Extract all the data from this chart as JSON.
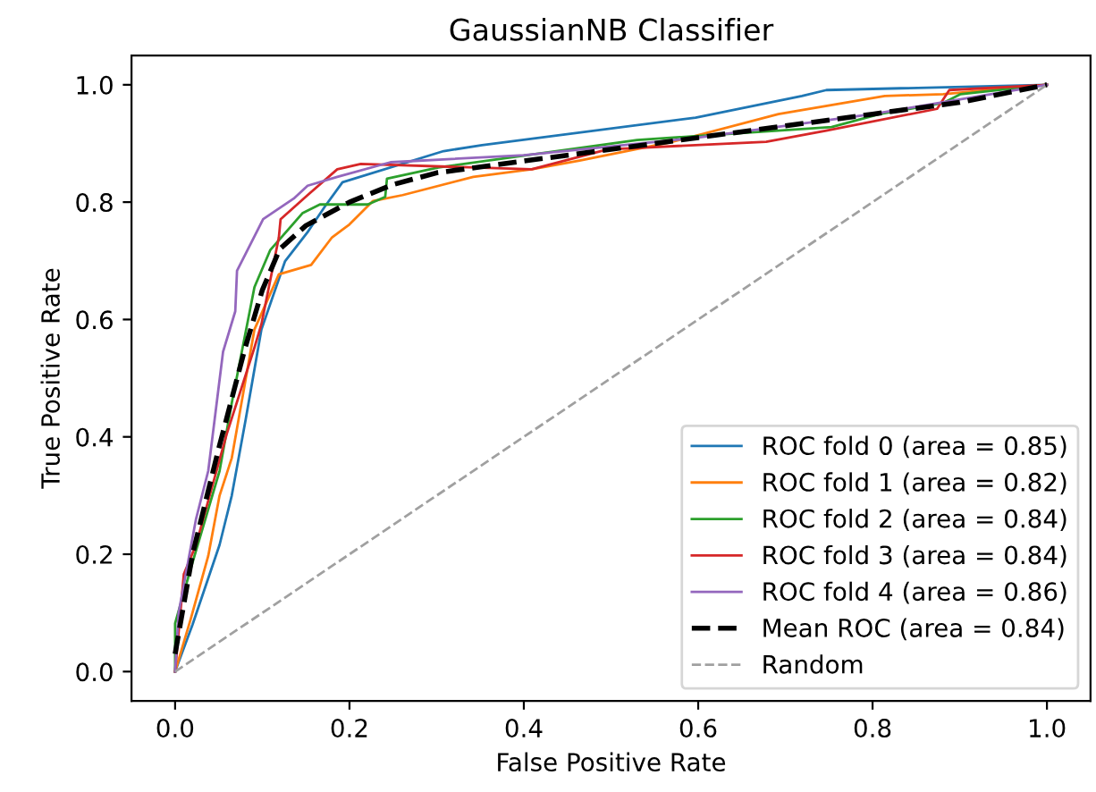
{
  "chart_data": {
    "type": "line",
    "title": "GaussianNB Classifier",
    "xlabel": "False Positive Rate",
    "ylabel": "True Positive Rate",
    "xlim": [
      -0.05,
      1.05
    ],
    "ylim": [
      -0.05,
      1.05
    ],
    "xticks": [
      {
        "value": 0,
        "label": "0.0"
      },
      {
        "value": 0.2,
        "label": "0.2"
      },
      {
        "value": 0.4,
        "label": "0.4"
      },
      {
        "value": 0.6,
        "label": "0.6"
      },
      {
        "value": 0.8,
        "label": "0.8"
      },
      {
        "value": 1,
        "label": "1.0"
      }
    ],
    "yticks": [
      {
        "value": 0,
        "label": "0.0"
      },
      {
        "value": 0.2,
        "label": "0.2"
      },
      {
        "value": 0.4,
        "label": "0.4"
      },
      {
        "value": 0.6,
        "label": "0.6"
      },
      {
        "value": 0.8,
        "label": "0.8"
      },
      {
        "value": 1,
        "label": "1.0"
      }
    ],
    "grid": false,
    "legend": "bottom right",
    "marker": "none",
    "series": [
      {
        "name": "ROC fold 0 (area = 0.85)",
        "color": "#1f77b4",
        "line_style": "solid",
        "x": [
          0,
          0.02,
          0.051,
          0.065,
          0.081,
          0.099,
          0.126,
          0.152,
          0.172,
          0.192,
          0.308,
          0.352,
          0.597,
          0.719,
          0.747,
          1
        ],
        "values": [
          0,
          0.08,
          0.216,
          0.3,
          0.43,
          0.583,
          0.699,
          0.749,
          0.793,
          0.834,
          0.887,
          0.897,
          0.944,
          0.981,
          0.991,
          1
        ]
      },
      {
        "name": "ROC fold 1 (area = 0.82)",
        "color": "#ff7f0e",
        "line_style": "solid",
        "x": [
          0,
          0.018,
          0.038,
          0.051,
          0.065,
          0.091,
          0.119,
          0.156,
          0.18,
          0.2,
          0.227,
          0.261,
          0.342,
          0.409,
          0.464,
          0.571,
          0.692,
          0.814,
          0.881,
          1
        ],
        "values": [
          0,
          0.09,
          0.197,
          0.3,
          0.364,
          0.583,
          0.677,
          0.693,
          0.74,
          0.762,
          0.802,
          0.812,
          0.843,
          0.856,
          0.871,
          0.903,
          0.95,
          0.981,
          0.984,
          1
        ]
      },
      {
        "name": "ROC fold 2 (area = 0.84)",
        "color": "#2ca02c",
        "line_style": "solid",
        "x": [
          0,
          0,
          0.018,
          0.051,
          0.065,
          0.091,
          0.109,
          0.146,
          0.166,
          0.221,
          0.241,
          0.243,
          0.302,
          0.53,
          0.753,
          0.808,
          0.881,
          0.901,
          1
        ],
        "values": [
          0,
          0.082,
          0.176,
          0.342,
          0.458,
          0.655,
          0.718,
          0.781,
          0.796,
          0.796,
          0.809,
          0.84,
          0.859,
          0.906,
          0.928,
          0.95,
          0.969,
          0.984,
          1
        ]
      },
      {
        "name": "ROC fold 3 (area = 0.84)",
        "color": "#d62728",
        "line_style": "solid",
        "x": [
          0,
          0.01,
          0.024,
          0.059,
          0.091,
          0.099,
          0.119,
          0.121,
          0.152,
          0.186,
          0.213,
          0.409,
          0.496,
          0.678,
          0.747,
          0.874,
          0.888,
          1
        ],
        "values": [
          0,
          0.166,
          0.216,
          0.404,
          0.552,
          0.592,
          0.74,
          0.771,
          0.812,
          0.856,
          0.865,
          0.856,
          0.89,
          0.903,
          0.922,
          0.959,
          0.991,
          1
        ]
      },
      {
        "name": "ROC fold 4 (area = 0.86)",
        "color": "#9467bd",
        "line_style": "solid",
        "x": [
          0,
          0.004,
          0.024,
          0.038,
          0.055,
          0.069,
          0.071,
          0.101,
          0.136,
          0.152,
          0.186,
          0.247,
          0.4,
          0.6,
          0.8,
          1
        ],
        "values": [
          0,
          0.1,
          0.26,
          0.342,
          0.545,
          0.614,
          0.683,
          0.771,
          0.806,
          0.828,
          0.843,
          0.868,
          0.88,
          0.91,
          0.95,
          1
        ]
      },
      {
        "name": "Mean ROC (area = 0.84)",
        "color": "#000000",
        "line_style": "dashed",
        "x": [
          0,
          0.02,
          0.05,
          0.08,
          0.1,
          0.12,
          0.15,
          0.2,
          0.25,
          0.3,
          0.4,
          0.5,
          0.6,
          0.7,
          0.8,
          0.9,
          1
        ],
        "values": [
          0.03,
          0.2,
          0.38,
          0.55,
          0.65,
          0.72,
          0.76,
          0.8,
          0.83,
          0.85,
          0.87,
          0.89,
          0.91,
          0.93,
          0.95,
          0.97,
          1
        ]
      },
      {
        "name": "Random",
        "color": "#a0a0a0",
        "line_style": "dashed",
        "x": [
          0,
          1
        ],
        "values": [
          0,
          1
        ]
      }
    ]
  }
}
